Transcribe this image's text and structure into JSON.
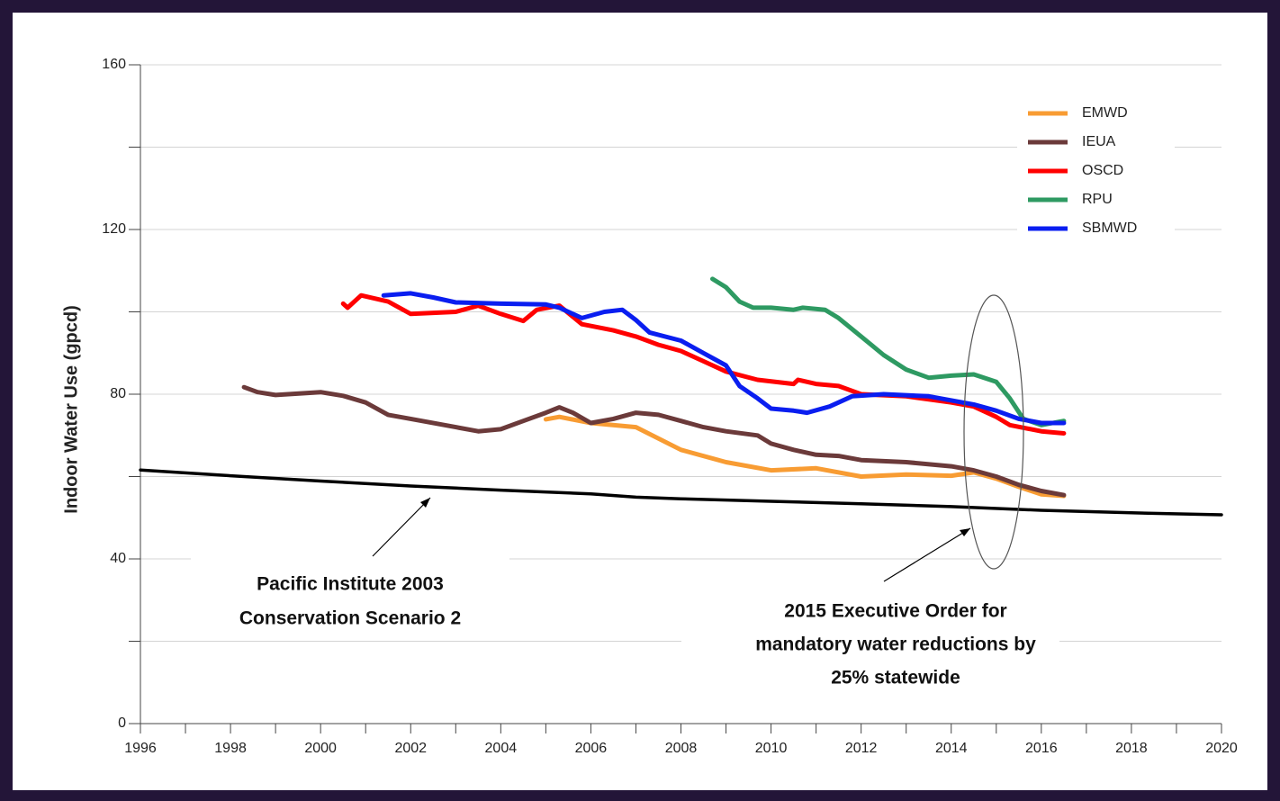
{
  "chart_data": {
    "type": "line",
    "ylabel": "Indoor Water Use (gpcd)",
    "xlim": [
      1996,
      2020
    ],
    "xticks": [
      1996,
      1998,
      2000,
      2002,
      2004,
      2006,
      2008,
      2010,
      2012,
      2014,
      2016,
      2018,
      2020
    ],
    "xminor": [
      1997,
      1999,
      2001,
      2003,
      2005,
      2007,
      2009,
      2011,
      2013,
      2015,
      2017,
      2019
    ],
    "ylim": [
      0,
      160
    ],
    "yticks": [
      0,
      40,
      80,
      120,
      160
    ],
    "yminor": [
      20,
      60,
      100,
      140
    ],
    "grid": true,
    "series": [
      {
        "color": "#000000",
        "x": [
          1996,
          1998,
          2000,
          2002,
          2004,
          2006,
          2007,
          2008,
          2010,
          2012,
          2014,
          2016,
          2018,
          2020
        ],
        "values": [
          61.6,
          60.2,
          58.9,
          57.7,
          56.7,
          55.8,
          55,
          54.6,
          54,
          53.4,
          52.7,
          51.8,
          51.2,
          50.7
        ]
      },
      {
        "name": "EMWD",
        "color": "#f89c33",
        "x": [
          2005,
          2005.3,
          2006,
          2007,
          2008,
          2009,
          2010,
          2011,
          2012,
          2013,
          2014,
          2014.5,
          2015,
          2015.5,
          2016,
          2016.5
        ],
        "values": [
          73.9,
          74.5,
          73,
          72,
          66.5,
          63.5,
          61.5,
          62,
          60,
          60.5,
          60.2,
          61,
          59.5,
          57.5,
          55.7,
          55.3
        ]
      },
      {
        "name": "IEUA",
        "color": "#6b3a3a",
        "x": [
          1998.3,
          1998.6,
          1999,
          2000,
          2000.5,
          2001,
          2001.5,
          2002,
          2003,
          2003.5,
          2004,
          2004.5,
          2005,
          2005.3,
          2005.6,
          2006,
          2006.5,
          2007,
          2007.5,
          2008,
          2008.5,
          2009,
          2009.7,
          2010,
          2010.5,
          2011,
          2011.5,
          2012,
          2013,
          2014,
          2014.5,
          2015,
          2015.5,
          2016,
          2016.5
        ],
        "values": [
          81.7,
          80.5,
          79.8,
          80.5,
          79.6,
          78,
          75,
          74,
          72,
          71,
          71.5,
          73.5,
          75.5,
          76.8,
          75.5,
          73,
          74,
          75.5,
          75,
          73.5,
          72,
          71,
          70,
          68,
          66.5,
          65.3,
          65,
          64,
          63.5,
          62.5,
          61.5,
          60,
          58,
          56.5,
          55.5
        ]
      },
      {
        "name": "OSCD",
        "color": "#ff0000",
        "x": [
          2000.5,
          2000.6,
          2000.9,
          2001.5,
          2002,
          2003,
          2003.5,
          2004,
          2004.5,
          2004.8,
          2005.3,
          2005.8,
          2006.5,
          2007,
          2007.5,
          2008,
          2008.5,
          2009,
          2009.7,
          2010.5,
          2010.6,
          2011,
          2011.5,
          2012,
          2013,
          2014,
          2014.5,
          2015,
          2015.3,
          2016,
          2016.5
        ],
        "values": [
          102,
          101,
          104,
          102.5,
          99.5,
          100,
          101.5,
          99.5,
          97.8,
          100.5,
          101.5,
          97,
          95.5,
          94,
          92,
          90.5,
          88,
          85.5,
          83.5,
          82.5,
          83.5,
          82.5,
          82,
          80,
          79.5,
          78,
          77,
          74.5,
          72.5,
          71,
          70.5
        ]
      },
      {
        "name": "RPU",
        "color": "#2e9a62",
        "x": [
          2008.7,
          2009,
          2009.3,
          2009.6,
          2010,
          2010.5,
          2010.7,
          2011.2,
          2011.5,
          2012,
          2012.5,
          2013,
          2013.5,
          2014,
          2014.5,
          2015,
          2015.3,
          2015.6,
          2016,
          2016.5
        ],
        "values": [
          108,
          106,
          102.5,
          101,
          101,
          100.5,
          101,
          100.5,
          98.5,
          94,
          89.5,
          86,
          84,
          84.5,
          84.8,
          83,
          79,
          74,
          72.5,
          73.5
        ]
      },
      {
        "name": "SBMWD",
        "color": "#0a1ef0",
        "x": [
          2001.4,
          2002,
          2002.5,
          2003,
          2004,
          2005,
          2005.3,
          2005.8,
          2006.3,
          2006.7,
          2007,
          2007.3,
          2008,
          2008.5,
          2009,
          2009.3,
          2009.7,
          2010,
          2010.5,
          2010.8,
          2011.3,
          2011.8,
          2012.5,
          2013.5,
          2014.5,
          2015,
          2015.5,
          2016,
          2016.5
        ],
        "values": [
          104,
          104.5,
          103.5,
          102.3,
          102,
          101.8,
          101,
          98.5,
          100,
          100.5,
          98,
          95,
          93,
          90,
          87,
          82,
          79,
          76.5,
          76,
          75.5,
          77,
          79.5,
          80,
          79.5,
          77.5,
          76,
          74,
          73,
          73
        ]
      }
    ],
    "annotations": [
      [
        "Pacific Institute 2003",
        "Conservation Scenario 2"
      ],
      [
        "2015 Executive Order for",
        "mandatory water reductions by",
        "25% statewide"
      ]
    ]
  }
}
